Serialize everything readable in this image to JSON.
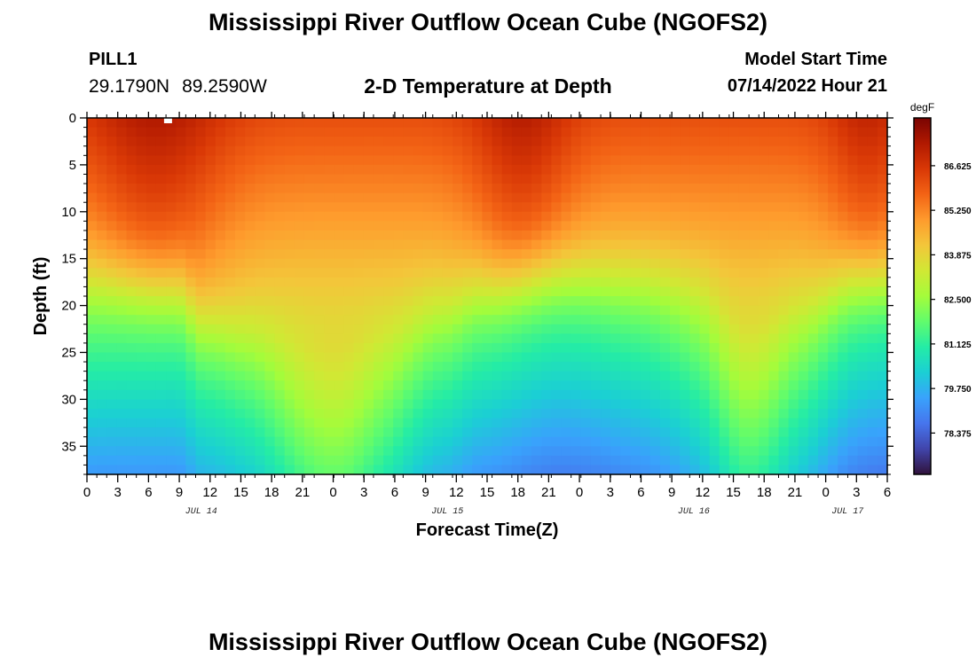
{
  "header": {
    "title": "Mississippi River Outflow Ocean Cube (NGOFS2)",
    "station_name": "PILL1",
    "latitude": "29.1790N",
    "longitude": "89.2590W",
    "subtitle": "2-D Temperature at Depth",
    "start_label": "Model Start Time",
    "start_value": "07/14/2022 Hour 21"
  },
  "footer": {
    "title": "Mississippi River Outflow Ocean Cube (NGOFS2)"
  },
  "chart_data": {
    "type": "heatmap",
    "title": "2-D Temperature at Depth",
    "xlabel": "Forecast Time(Z)",
    "ylabel": "Depth (ft)",
    "x_range_hours_from_jul13_21z": [
      0,
      81
    ],
    "x_tick_labels": [
      "0",
      "3",
      "6",
      "9",
      "12",
      "15",
      "18",
      "21",
      "0",
      "3",
      "6",
      "9",
      "12",
      "15",
      "18",
      "21",
      "0",
      "3",
      "6",
      "9",
      "12",
      "15",
      "18",
      "21",
      "0",
      "3",
      "6"
    ],
    "date_labels": [
      {
        "label": "JUL 14",
        "at_tick": "12"
      },
      {
        "label": "JUL 15",
        "at_tick": "12"
      },
      {
        "label": "JUL 16",
        "at_tick": "12"
      },
      {
        "label": "JUL 17",
        "at_tick": "3"
      }
    ],
    "y_range": [
      0,
      38
    ],
    "y_inverted": true,
    "y_ticks": [
      0,
      5,
      10,
      15,
      20,
      25,
      30,
      35
    ],
    "colorbar": {
      "unit": "degF",
      "range": [
        77.1,
        88.1
      ],
      "ticks": [
        "86.625",
        "85.250",
        "83.875",
        "82.500",
        "81.125",
        "79.750",
        "78.375"
      ],
      "colors": [
        "#30123b",
        "#4145ab",
        "#4675ed",
        "#39a2fc",
        "#1bcfd4",
        "#24eca6",
        "#61fc6c",
        "#a4fc3b",
        "#d1e834",
        "#f3c63a",
        "#fe9b2d",
        "#f36315",
        "#d93806",
        "#b11901",
        "#7a0402"
      ]
    },
    "grid": false
  }
}
